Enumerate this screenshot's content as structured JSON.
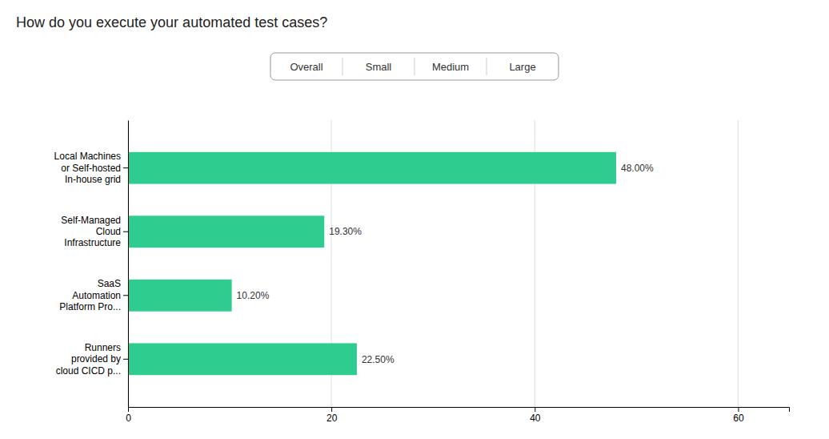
{
  "chart_data": {
    "type": "bar",
    "orientation": "horizontal",
    "title": "How do you execute your automated test cases?",
    "annotations": [
      "Overall",
      "Small",
      "Medium",
      "Large"
    ],
    "categories": [
      "Local Machines\nor Self-hosted\nIn-house grid",
      "Self-Managed\nCloud\nInfrastructure",
      "SaaS\nAutomation\nPlatform Pro...",
      "Runners\nprovided by\ncloud CICD p..."
    ],
    "values": [
      48.0,
      19.3,
      10.2,
      22.5
    ],
    "value_labels": [
      "48.00%",
      "19.30%",
      "10.20%",
      "22.50%"
    ],
    "data_labels": true,
    "color": "#2ecc8e",
    "xlim": [
      0,
      65
    ],
    "xticks": [
      0,
      20,
      40,
      60
    ],
    "grid": true
  }
}
